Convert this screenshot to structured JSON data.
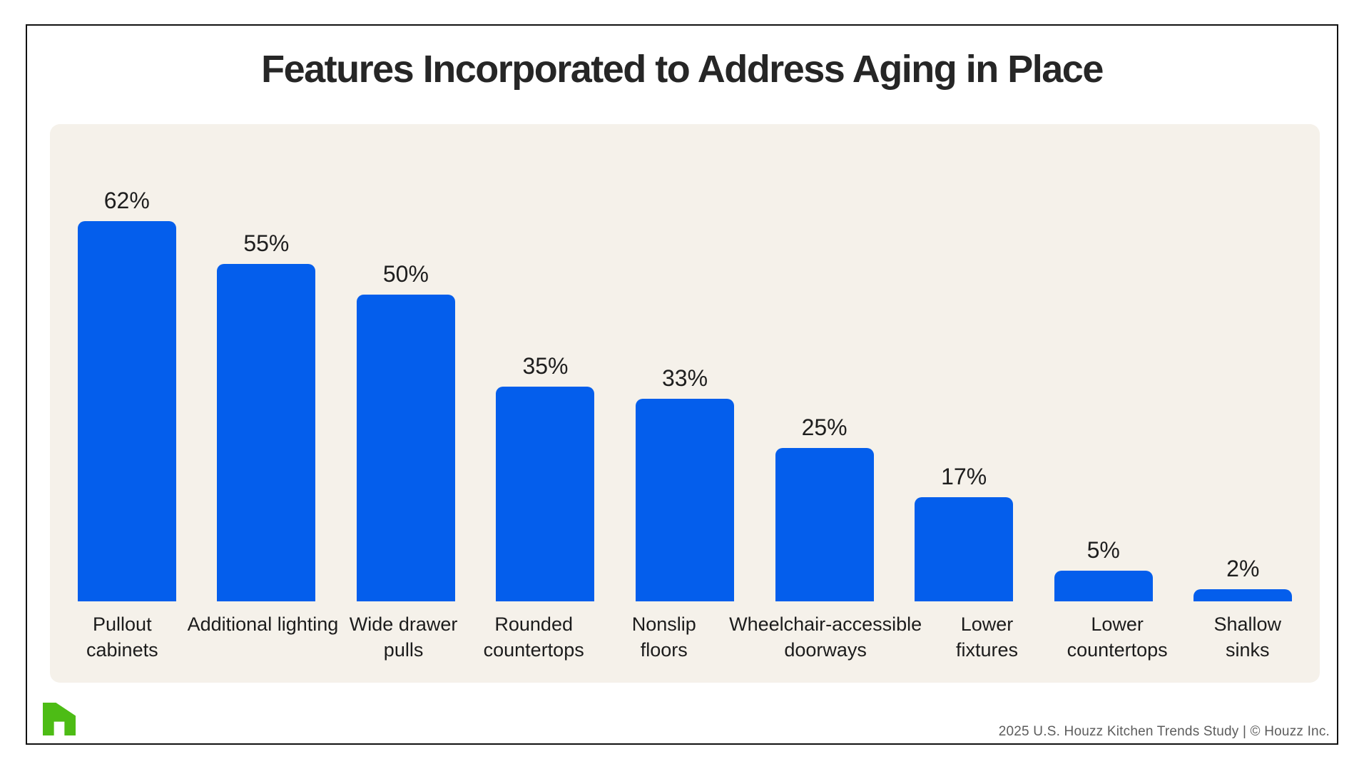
{
  "page": {
    "footer": "2025 U.S. Houzz Kitchen Trends Study  |  © Houzz Inc.",
    "logo": "houzz-logo"
  },
  "colors": {
    "bar_blue": "#045eec",
    "panel_background": "#f5f1ea",
    "page_background": "#ffffff",
    "frame_border": "#111111",
    "title_text": "#262626",
    "label_text": "#1c1c1c",
    "footer_text": "#5c5c5c",
    "logo_green": "#4dbc15"
  },
  "chart_data": {
    "type": "bar",
    "title": "Features Incorporated to Address Aging in Place",
    "categories": [
      "Pullout cabinets",
      "Additional lighting",
      "Wide drawer pulls",
      "Rounded countertops",
      "Nonslip floors",
      "Wheelchair-accessible doorways",
      "Lower fixtures",
      "Lower countertops",
      "Shallow sinks"
    ],
    "category_lines": [
      [
        "Pullout",
        "cabinets"
      ],
      [
        "Additional lighting"
      ],
      [
        "Wide drawer",
        "pulls"
      ],
      [
        "Rounded",
        "countertops"
      ],
      [
        "Nonslip",
        "floors"
      ],
      [
        "Wheelchair-accessible",
        "doorways"
      ],
      [
        "Lower",
        "fixtures"
      ],
      [
        "Lower",
        "countertops"
      ],
      [
        "Shallow",
        "sinks"
      ]
    ],
    "values": [
      62,
      55,
      50,
      35,
      33,
      25,
      17,
      5,
      2
    ],
    "value_labels": [
      "62%",
      "55%",
      "50%",
      "35%",
      "33%",
      "25%",
      "17%",
      "5%",
      "2%"
    ],
    "xlabel": "",
    "ylabel": "",
    "ylim": [
      0,
      70
    ],
    "grid": false,
    "legend": false,
    "bar_style": "rounded-top"
  }
}
